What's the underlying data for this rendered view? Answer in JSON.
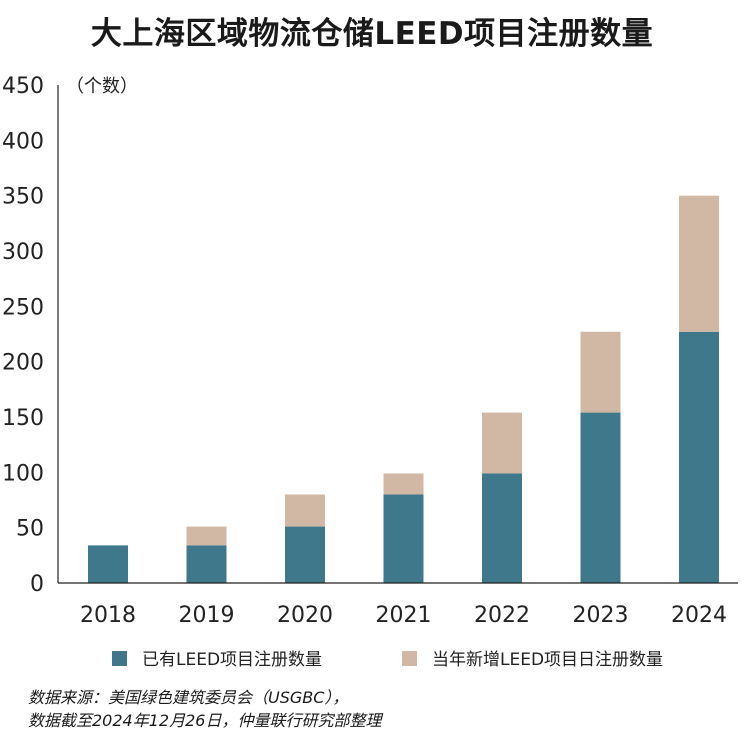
{
  "chart_data": {
    "type": "bar",
    "stacked": true,
    "title": "大上海区域物流仓储LEED项目注册数量",
    "unit_label": "（个数）",
    "categories": [
      "2018",
      "2019",
      "2020",
      "2021",
      "2022",
      "2023",
      "2024"
    ],
    "series": [
      {
        "name": "已有LEED项目注册数量",
        "color": "#3f788b",
        "values": [
          34,
          34,
          51,
          80,
          99,
          154,
          227
        ]
      },
      {
        "name": "当年新增LEED项目日注册数量",
        "color": "#d0b8a5",
        "values": [
          0,
          17,
          29,
          19,
          55,
          73,
          123
        ]
      }
    ],
    "ylim": [
      0,
      450
    ],
    "yticks": [
      0,
      50,
      100,
      150,
      200,
      250,
      300,
      350,
      400,
      450
    ],
    "grid": false,
    "legend_position": "bottom"
  },
  "source": {
    "line1": "数据来源：美国绿色建筑委员会（USGBC），",
    "line2": "数据截至2024年12月26日，仲量联行研究部整理"
  }
}
